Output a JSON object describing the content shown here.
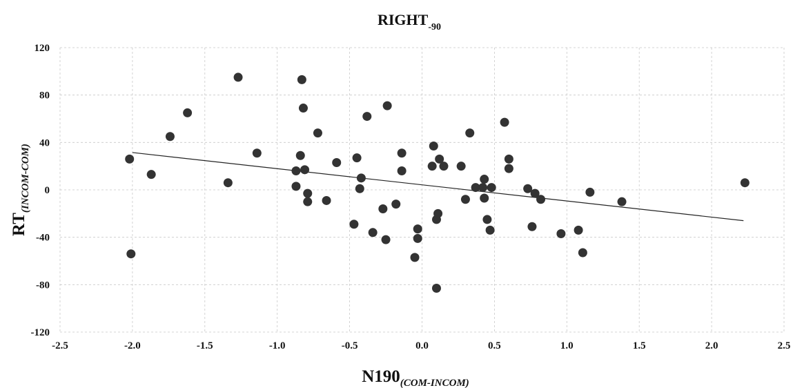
{
  "chart_data": {
    "type": "scatter",
    "title": "RIGHT",
    "title_subscript": "-90",
    "xlabel": "N190",
    "xlabel_subscript": "(COM-INCOM)",
    "ylabel": "RT",
    "ylabel_subscript": "(INCOM-COM)",
    "xlim": [
      -2.5,
      2.5
    ],
    "ylim": [
      -120,
      120
    ],
    "x_ticks": [
      -2.5,
      -2.0,
      -1.5,
      -1.0,
      -0.5,
      0.0,
      0.5,
      1.0,
      1.5,
      2.0,
      2.5
    ],
    "x_tick_labels": [
      "-2.5",
      "-2.0",
      "-1.5",
      "-1.0",
      "-0.5",
      "0.0",
      "0.5",
      "1.0",
      "1.5",
      "2.0",
      "2.5"
    ],
    "y_ticks": [
      120,
      80,
      40,
      0,
      -40,
      -80,
      -120
    ],
    "y_tick_labels": [
      "120",
      "80",
      "40",
      "0",
      "-40",
      "-80",
      "-120"
    ],
    "grid": true,
    "marker_color": "#333333",
    "trendline_color": "#222222",
    "trendline": {
      "x": [
        -2.0,
        2.22
      ],
      "y": [
        31.5,
        -26
      ]
    },
    "points": [
      {
        "x": -2.02,
        "y": 26
      },
      {
        "x": -2.01,
        "y": -54
      },
      {
        "x": -1.87,
        "y": 13
      },
      {
        "x": -1.74,
        "y": 45
      },
      {
        "x": -1.62,
        "y": 65
      },
      {
        "x": -1.34,
        "y": 6
      },
      {
        "x": -1.27,
        "y": 95
      },
      {
        "x": -1.14,
        "y": 31
      },
      {
        "x": -0.87,
        "y": 16
      },
      {
        "x": -0.87,
        "y": 3
      },
      {
        "x": -0.84,
        "y": 29
      },
      {
        "x": -0.83,
        "y": 93
      },
      {
        "x": -0.82,
        "y": 69
      },
      {
        "x": -0.81,
        "y": 17
      },
      {
        "x": -0.79,
        "y": -3
      },
      {
        "x": -0.79,
        "y": -10
      },
      {
        "x": -0.72,
        "y": 48
      },
      {
        "x": -0.66,
        "y": -9
      },
      {
        "x": -0.59,
        "y": 23
      },
      {
        "x": -0.47,
        "y": -29
      },
      {
        "x": -0.45,
        "y": 27
      },
      {
        "x": -0.43,
        "y": 1
      },
      {
        "x": -0.42,
        "y": 10
      },
      {
        "x": -0.38,
        "y": 62
      },
      {
        "x": -0.34,
        "y": -36
      },
      {
        "x": -0.27,
        "y": -16
      },
      {
        "x": -0.25,
        "y": -42
      },
      {
        "x": -0.24,
        "y": 71
      },
      {
        "x": -0.18,
        "y": -12
      },
      {
        "x": -0.14,
        "y": 31
      },
      {
        "x": -0.14,
        "y": 16
      },
      {
        "x": -0.05,
        "y": -57
      },
      {
        "x": -0.03,
        "y": -33
      },
      {
        "x": -0.03,
        "y": -41
      },
      {
        "x": 0.07,
        "y": 20
      },
      {
        "x": 0.08,
        "y": 37
      },
      {
        "x": 0.1,
        "y": -83
      },
      {
        "x": 0.1,
        "y": -25
      },
      {
        "x": 0.11,
        "y": -20
      },
      {
        "x": 0.12,
        "y": 26
      },
      {
        "x": 0.15,
        "y": 20
      },
      {
        "x": 0.27,
        "y": 20
      },
      {
        "x": 0.3,
        "y": -8
      },
      {
        "x": 0.33,
        "y": 48
      },
      {
        "x": 0.37,
        "y": 2
      },
      {
        "x": 0.42,
        "y": 2
      },
      {
        "x": 0.43,
        "y": 9
      },
      {
        "x": 0.43,
        "y": -7
      },
      {
        "x": 0.45,
        "y": -25
      },
      {
        "x": 0.47,
        "y": -34
      },
      {
        "x": 0.48,
        "y": 2
      },
      {
        "x": 0.57,
        "y": 57
      },
      {
        "x": 0.6,
        "y": 26
      },
      {
        "x": 0.6,
        "y": 18
      },
      {
        "x": 0.73,
        "y": 1
      },
      {
        "x": 0.76,
        "y": -31
      },
      {
        "x": 0.78,
        "y": -3
      },
      {
        "x": 0.82,
        "y": -8
      },
      {
        "x": 0.96,
        "y": -37
      },
      {
        "x": 1.08,
        "y": -34
      },
      {
        "x": 1.11,
        "y": -53
      },
      {
        "x": 1.16,
        "y": -2
      },
      {
        "x": 1.38,
        "y": -10
      },
      {
        "x": 2.23,
        "y": 6
      }
    ]
  }
}
